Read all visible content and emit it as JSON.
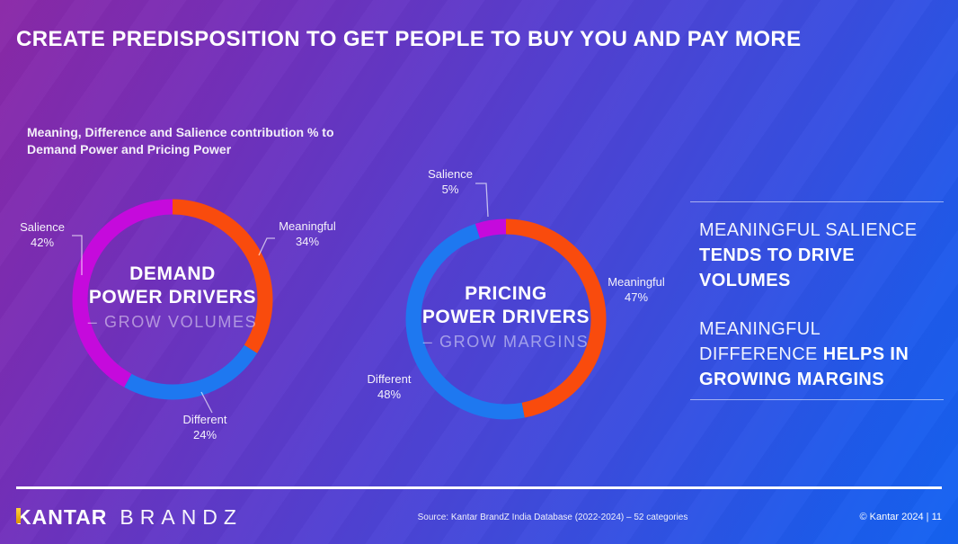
{
  "slide": {
    "title": "CREATE PREDISPOSITION TO GET PEOPLE TO BUY YOU AND PAY MORE",
    "subtitle_lines": [
      "Meaning, Difference and Salience contribution % to",
      "Demand Power and Pricing Power"
    ]
  },
  "chart_data": [
    {
      "type": "pie",
      "variant": "donut",
      "title": "DEMAND POWER DRIVERS",
      "center_title_lines": [
        "DEMAND",
        "POWER DRIVERS"
      ],
      "center_subtitle": "– GROW VOLUMES",
      "direction": "clockwise",
      "start_angle_deg": 0,
      "segments": [
        {
          "label": "Meaningful",
          "value": 34,
          "display": "34%",
          "color": "#F94B0D"
        },
        {
          "label": "Different",
          "value": 24,
          "display": "24%",
          "color": "#1E78F0"
        },
        {
          "label": "Salience",
          "value": 42,
          "display": "42%",
          "color": "#C50ADC"
        }
      ]
    },
    {
      "type": "pie",
      "variant": "donut",
      "title": "PRICING POWER DRIVERS",
      "center_title_lines": [
        "PRICING",
        "POWER DRIVERS"
      ],
      "center_subtitle": "– GROW MARGINS",
      "direction": "clockwise",
      "start_angle_deg": 0,
      "segments": [
        {
          "label": "Meaningful",
          "value": 47,
          "display": "47%",
          "color": "#F94B0D"
        },
        {
          "label": "Different",
          "value": 48,
          "display": "48%",
          "color": "#1E78F0"
        },
        {
          "label": "Salience",
          "value": 5,
          "display": "5%",
          "color": "#C50ADC"
        }
      ]
    }
  ],
  "insights": {
    "blocks": [
      {
        "lines": [
          [
            {
              "text": "MEANINGFUL SALIENCE",
              "bold": false
            }
          ],
          [
            {
              "text": "TENDS TO DRIVE",
              "bold": true
            }
          ],
          [
            {
              "text": "VOLUMES",
              "bold": true
            }
          ]
        ]
      },
      {
        "lines": [
          [
            {
              "text": "MEANINGFUL",
              "bold": false
            }
          ],
          [
            {
              "text": "DIFFERENCE ",
              "bold": false
            },
            {
              "text": "HELPS IN",
              "bold": true
            }
          ],
          [
            {
              "text": "GROWING MARGINS",
              "bold": true
            }
          ]
        ]
      }
    ]
  },
  "footer": {
    "brand_primary": "KANTAR",
    "brand_secondary": "BRANDZ",
    "source": "Source: Kantar BrandZ India Database (2022-2024) – 52 categories",
    "copyright": "© Kantar 2024 | 11"
  },
  "colors": {
    "meaningful": "#F94B0D",
    "different": "#1E78F0",
    "salience": "#C50ADC",
    "background_start": "#8B29A7",
    "background_end": "#1463F2",
    "kantar_accent": "#F2A900"
  }
}
